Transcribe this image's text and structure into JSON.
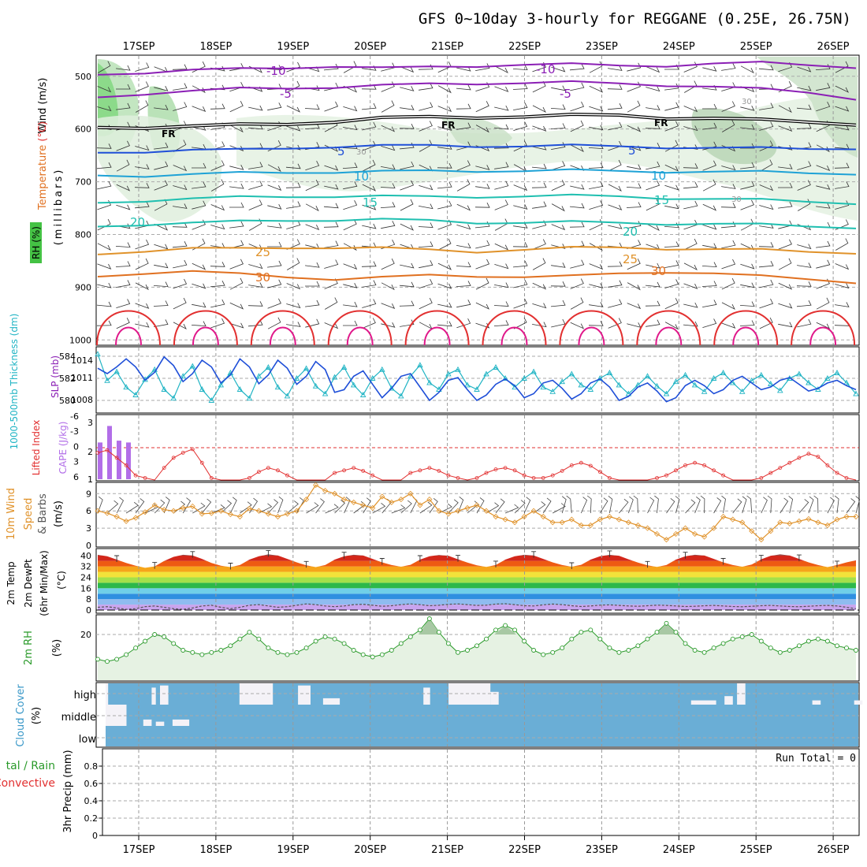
{
  "chart_data": {
    "type": "meteogram",
    "title": "GFS 0~10day 3-hourly for REGGANE (0.25E, 26.75N)",
    "dates": [
      "17SEP",
      "18SEP",
      "19SEP",
      "20SEP",
      "21SEP",
      "22SEP",
      "23SEP",
      "24SEP",
      "25SEP",
      "26SEP"
    ],
    "colors": {
      "purple": "#8b1fb5",
      "blue": "#1f4fd8",
      "sky": "#1ea2d6",
      "teal": "#1fbfb0",
      "orange": "#e0922a",
      "dorange": "#e07020",
      "red": "#e23030",
      "pink": "#e0188a",
      "green": "#2a9a2a",
      "cyan": "#20b4c4",
      "lav": "#b26ee8",
      "cloud": "#6aaed6",
      "rhfill": "#e6f2e3"
    },
    "panels": {
      "upper": {
        "ylabel_wind": "Wind (m/s)",
        "ylabel_temp": "Temperature (°C)",
        "ylabel_axis": "(millibars)",
        "ylabel_rh": "RH (%)",
        "yticks": [
          500,
          600,
          700,
          800,
          900,
          1000
        ],
        "labels": {
          "m10": "-10",
          "m5": "-5",
          "fr": "FR",
          "p5": "5",
          "p10": "10",
          "p15": "15",
          "p20": "20",
          "p25": "25",
          "p30": "30",
          "rh30": "30"
        },
        "isotherms": [
          {
            "name": "-10",
            "color": "purple",
            "p": [
              497,
              492,
              488,
              487,
              484,
              480,
              485,
              483,
              480,
              477,
              478,
              480,
              479,
              476,
              475,
              478,
              482
            ]
          },
          {
            "name": "-5",
            "color": "purple",
            "p": [
              540,
              532,
              528,
              524,
              522,
              520,
              518,
              515,
              513,
              512,
              512,
              514,
              516,
              520,
              525,
              530,
              542
            ]
          },
          {
            "name": "FR",
            "color": "black",
            "p": [
              597,
              596,
              595,
              593,
              590,
              585,
              580,
              578,
              577,
              576,
              575,
              574,
              578,
              580,
              584,
              586,
              590
            ]
          },
          {
            "name": "5",
            "color": "blue",
            "p": [
              645,
              642,
              640,
              640,
              636,
              633,
              632,
              632,
              632,
              632,
              632,
              633,
              634,
              636,
              637,
              637,
              636
            ]
          },
          {
            "name": "10",
            "color": "sky",
            "p": [
              688,
              688,
              686,
              684,
              682,
              681,
              681,
              680,
              679,
              679,
              679,
              680,
              680,
              681,
              682,
              683,
              684
            ]
          },
          {
            "name": "15",
            "color": "teal",
            "p": [
              740,
              735,
              732,
              730,
              728,
              727,
              728,
              729,
              728,
              727,
              727,
              728,
              730,
              733,
              735,
              737,
              740
            ]
          },
          {
            "name": "20",
            "color": "teal",
            "p": [
              785,
              780,
              778,
              776,
              773,
              772,
              772,
              774,
              777,
              777,
              777,
              778,
              779,
              780,
              782,
              784,
              786
            ]
          },
          {
            "name": "25",
            "color": "orange",
            "p": [
              838,
              830,
              826,
              828,
              825,
              824,
              826,
              830,
              832,
              828,
              826,
              825,
              826,
              828,
              830,
              832,
              834
            ]
          },
          {
            "name": "30",
            "color": "dorange",
            "p": [
              880,
              872,
              870,
              876,
              880,
              884,
              882,
              878,
              878,
              880,
              880,
              874,
              870,
              874,
              880,
              884,
              890
            ]
          }
        ]
      },
      "thickness": {
        "ylabel_thk": "1000-500mb Thickness (dm)",
        "ylabel_slp": "SLP (mb)",
        "yticks_left": [
          "584",
          "582",
          "580"
        ],
        "yticks_right": [
          "1014",
          "1011",
          "1008"
        ],
        "thickness_dm": [
          584.2,
          581.8,
          582.6,
          581.2,
          580.5,
          581.9,
          582.8,
          581.0,
          580.2,
          582.2,
          583.1,
          581.0,
          580.0,
          581.4,
          582.5,
          581.0,
          580.2,
          582.2,
          583.0,
          581.2,
          580.4,
          582.0,
          582.9,
          581.3,
          580.6,
          582.1,
          583.0,
          581.4,
          580.5,
          582.0,
          582.8,
          581.1,
          580.4,
          582.2,
          583.2,
          581.6,
          581.0,
          582.4,
          582.8,
          581.4,
          581.0,
          582.4,
          583.0,
          582.0,
          581.2,
          582.0,
          582.6,
          581.2,
          580.8,
          581.7,
          582.4,
          581.4,
          581.0,
          582.0,
          582.5,
          581.4,
          580.6,
          581.4,
          582.2,
          581.3,
          580.6,
          581.7,
          582.3,
          581.4,
          580.8,
          582.0,
          582.5,
          581.6,
          580.8,
          581.8,
          582.3,
          581.5,
          580.9,
          582.0,
          582.4,
          581.6,
          581.0,
          582.0,
          582.5,
          581.6,
          580.6
        ],
        "slp_mb": [
          1012.8,
          1012.0,
          1013.0,
          1014.2,
          1013.0,
          1011.0,
          1012.2,
          1014.5,
          1013.2,
          1010.8,
          1012.0,
          1014.0,
          1013.0,
          1010.6,
          1011.8,
          1014.2,
          1013.0,
          1010.5,
          1011.8,
          1014.0,
          1012.8,
          1010.4,
          1011.6,
          1013.8,
          1012.6,
          1009.2,
          1009.6,
          1011.6,
          1012.4,
          1010.4,
          1008.4,
          1009.8,
          1011.6,
          1012.0,
          1010.0,
          1008.0,
          1009.2,
          1011.0,
          1011.4,
          1009.6,
          1008.0,
          1008.8,
          1010.4,
          1011.2,
          1010.2,
          1008.4,
          1009.0,
          1010.6,
          1011.0,
          1009.8,
          1008.2,
          1009.0,
          1010.6,
          1011.2,
          1010.0,
          1008.0,
          1008.6,
          1010.0,
          1010.6,
          1009.4,
          1007.8,
          1008.4,
          1010.2,
          1011.0,
          1010.2,
          1009.0,
          1009.6,
          1011.0,
          1011.6,
          1010.6,
          1009.6,
          1010.0,
          1011.0,
          1011.4,
          1010.4,
          1009.4,
          1009.8,
          1010.6,
          1011.0,
          1010.2,
          1009.6
        ]
      },
      "cape": {
        "ylabel_li": "Lifted Index",
        "ylabel_cape": "CAPE (J/kg)",
        "yticks_left": [
          "-6",
          "-3",
          "0",
          "3",
          "6"
        ],
        "yticks_right": [
          "3",
          "2",
          "1"
        ],
        "li": [
          1.0,
          0.5,
          2.0,
          3.5,
          5.5,
          6.0,
          7.0,
          4.0,
          2.0,
          1.0,
          0.3,
          3.0,
          6.0,
          7.0,
          8.0,
          7.0,
          6.0,
          4.8,
          4.0,
          4.5,
          5.5,
          6.5,
          7.0,
          6.8,
          6.5,
          5.0,
          4.5,
          4.0,
          4.6,
          5.5,
          6.5,
          7.0,
          6.5,
          5.0,
          4.5,
          4.0,
          4.6,
          5.5,
          6.0,
          6.5,
          6.0,
          5.0,
          4.3,
          4.0,
          4.5,
          5.5,
          6.0,
          6.0,
          5.5,
          4.6,
          3.5,
          3.0,
          3.6,
          4.8,
          6.0,
          6.5,
          7.0,
          6.8,
          6.6,
          6.0,
          5.5,
          4.5,
          3.5,
          3.0,
          3.5,
          4.5,
          5.5,
          6.5,
          7.0,
          6.5,
          6.0,
          5.0,
          4.0,
          3.0,
          2.0,
          1.2,
          1.8,
          3.5,
          5.0,
          6.0,
          7.0
        ],
        "cape_bars": [
          {
            "i": 0,
            "v": 2.0
          },
          {
            "i": 1,
            "v": 2.9
          },
          {
            "i": 2,
            "v": 2.1
          },
          {
            "i": 3,
            "v": 2.0
          }
        ]
      },
      "wind10": {
        "ylabel_wind": "10m Wind",
        "ylabel_speed": "Speed",
        "ylabel_barbs": "& Barbs",
        "ylabel_units": "(m/s)",
        "yticks": [
          "9",
          "6",
          "3",
          "0"
        ],
        "speed": [
          6.0,
          5.6,
          5.0,
          4.2,
          4.8,
          5.8,
          7.0,
          6.2,
          6.0,
          6.5,
          6.8,
          5.5,
          5.6,
          6.0,
          5.4,
          5.0,
          6.4,
          6.0,
          5.5,
          5.0,
          5.5,
          6.0,
          8.0,
          10.5,
          9.5,
          9.0,
          8.0,
          7.5,
          7.0,
          6.5,
          8.5,
          7.5,
          8.0,
          9.0,
          7.0,
          8.0,
          6.0,
          5.5,
          6.0,
          6.5,
          7.0,
          6.0,
          5.0,
          4.5,
          4.0,
          5.0,
          6.0,
          5.0,
          4.0,
          4.0,
          4.5,
          3.5,
          3.5,
          4.5,
          5.0,
          4.5,
          4.0,
          3.5,
          3.0,
          2.0,
          1.0,
          2.0,
          3.0,
          2.0,
          1.5,
          3.0,
          5.0,
          4.5,
          4.0,
          2.5,
          1.0,
          2.5,
          4.0,
          3.8,
          4.2,
          4.6,
          4.0,
          3.5,
          4.5,
          5.0,
          5.0
        ]
      },
      "temp2m": {
        "ylabel_temp": "2m Temp",
        "ylabel_dewpt": "2m DewPt",
        "ylabel_minmax": "(6hr Min/Max)",
        "ylabel_units": "(°C)",
        "yticks": [
          "40",
          "32",
          "24",
          "16",
          "8",
          "0"
        ],
        "temp": [
          40.5,
          39.5,
          37.0,
          34.5,
          32.5,
          31.0,
          32.0,
          36.0,
          39.0,
          40.5,
          40.0,
          37.5,
          34.5,
          32.5,
          31.5,
          33.0,
          37.0,
          39.5,
          40.8,
          40.0,
          37.5,
          35.0,
          32.8,
          31.5,
          33.0,
          37.0,
          39.5,
          40.5,
          40.0,
          37.5,
          35.0,
          33.0,
          31.8,
          33.2,
          37.0,
          39.5,
          40.4,
          39.8,
          37.2,
          34.8,
          32.8,
          31.6,
          33.0,
          37.0,
          39.5,
          40.5,
          40.0,
          37.5,
          35.0,
          33.0,
          31.8,
          33.2,
          37.0,
          39.5,
          40.5,
          39.8,
          37.2,
          34.8,
          32.8,
          31.6,
          33.0,
          37.0,
          39.5,
          40.5,
          40.0,
          37.5,
          35.0,
          33.0,
          31.8,
          33.4,
          37.2,
          39.8,
          40.8,
          40.0,
          37.5,
          35.0,
          33.0,
          31.5,
          33.0,
          35.0,
          36.5
        ],
        "dewpt": [
          2.0,
          2.5,
          1.5,
          0.5,
          1.0,
          2.5,
          3.0,
          2.0,
          1.0,
          0.5,
          1.5,
          3.0,
          3.5,
          2.0,
          1.0,
          2.0,
          3.5,
          4.0,
          3.0,
          2.0,
          2.5,
          3.5,
          4.5,
          4.0,
          3.0,
          2.5,
          3.0,
          4.0,
          4.2,
          3.5,
          2.8,
          3.2,
          4.0,
          4.5,
          4.0,
          3.2,
          3.5,
          4.2,
          4.5,
          4.0,
          3.4,
          3.6,
          4.4,
          4.6,
          4.0,
          3.2,
          3.0,
          3.8,
          4.4,
          4.0,
          3.2,
          2.6,
          3.0,
          3.6,
          3.8,
          3.4,
          3.0,
          2.8,
          3.2,
          3.6,
          3.4,
          3.0,
          2.6,
          2.8,
          3.2,
          3.4,
          3.0,
          2.6,
          2.4,
          2.8,
          3.2,
          3.4,
          3.0,
          2.6,
          2.4,
          2.8,
          3.2,
          3.4,
          3.0,
          2.0,
          1.0
        ]
      },
      "rh2m": {
        "ylabel_rh": "2m RH",
        "ylabel_units": "(%)",
        "yticks": [
          "20"
        ],
        "rh": [
          9,
          8,
          9,
          11,
          14,
          17,
          20,
          19,
          16,
          13,
          12,
          11,
          12,
          13,
          15,
          18,
          21,
          18,
          14,
          12,
          11,
          12,
          14,
          17,
          19,
          18,
          16,
          13,
          11,
          10,
          11,
          13,
          16,
          19,
          22,
          27,
          21,
          16,
          12,
          13,
          15,
          18,
          22,
          24,
          22,
          17,
          13,
          11,
          12,
          14,
          18,
          21,
          22,
          18,
          14,
          12,
          13,
          15,
          18,
          21,
          25,
          21,
          16,
          13,
          12,
          14,
          16,
          18,
          19,
          20,
          17,
          14,
          12,
          13,
          15,
          17,
          18,
          17,
          15,
          14,
          13
        ]
      },
      "cloud": {
        "ylabel_cloud": "Cloud Cover",
        "ylabel_units": "(%)",
        "rows": [
          "high",
          "middle",
          "low"
        ],
        "clear_gaps": [
          {
            "layer": "high",
            "from": 0.0,
            "to": 0.3,
            "depth": 1.0
          },
          {
            "layer": "high",
            "from": 5.5,
            "to": 6.0,
            "depth": 0.8
          },
          {
            "layer": "high",
            "from": 6.5,
            "to": 7.5,
            "depth": 0.9
          },
          {
            "layer": "high",
            "from": 16.0,
            "to": 20.0,
            "depth": 1.0
          },
          {
            "layer": "high",
            "from": 23.0,
            "to": 24.5,
            "depth": 0.9
          },
          {
            "layer": "high",
            "from": 26.0,
            "to": 28.0,
            "depth": 0.3
          },
          {
            "layer": "high",
            "from": 38.0,
            "to": 38.8,
            "depth": 0.8
          },
          {
            "layer": "high",
            "from": 41.0,
            "to": 46.0,
            "depth": 1.0
          },
          {
            "layer": "high",
            "from": 46.0,
            "to": 47.0,
            "depth": 0.6
          },
          {
            "layer": "high",
            "from": 70.0,
            "to": 73.0,
            "depth": 0.2
          },
          {
            "layer": "high",
            "from": 74.0,
            "to": 75.0,
            "depth": 0.4
          },
          {
            "layer": "high",
            "from": 75.5,
            "to": 76.5,
            "depth": 1.0
          },
          {
            "layer": "high",
            "from": 84.5,
            "to": 85.5,
            "depth": 0.2
          },
          {
            "layer": "high",
            "from": 89.5,
            "to": 90.5,
            "depth": 0.2
          },
          {
            "layer": "middle",
            "from": 0.0,
            "to": 2.5,
            "depth": 1.0
          },
          {
            "layer": "middle",
            "from": 4.5,
            "to": 5.5,
            "depth": 0.3
          },
          {
            "layer": "middle",
            "from": 6.0,
            "to": 7.0,
            "depth": 0.2
          },
          {
            "layer": "middle",
            "from": 8.0,
            "to": 10.0,
            "depth": 0.3
          }
        ]
      },
      "precip": {
        "ylabel_line1": "tal / Rain",
        "ylabel_line2": "Convective",
        "ylabel_axis": "3hr Precip (mm)",
        "yticks": [
          "0.8",
          "0.6",
          "0.4",
          "0.2",
          "0"
        ],
        "run_total": "Run Total = 0"
      }
    }
  }
}
